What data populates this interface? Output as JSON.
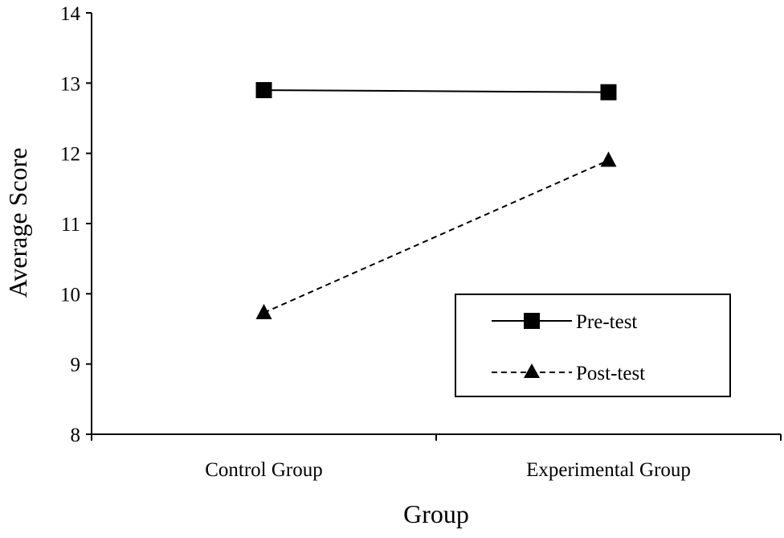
{
  "chart_data": {
    "type": "line",
    "title": "",
    "xlabel": "Group",
    "ylabel": "Average Score",
    "categories": [
      "Control Group",
      "Experimental Group"
    ],
    "ylim": [
      8,
      14
    ],
    "yticks": [
      "8",
      "9",
      "10",
      "11",
      "12",
      "13",
      "14"
    ],
    "grid": false,
    "legend_position": "bottom-right",
    "series": [
      {
        "name": "Pre-test",
        "values": [
          12.9,
          12.87
        ],
        "line_style": "solid",
        "marker": "square",
        "color": "#000000"
      },
      {
        "name": "Post-test",
        "values": [
          9.73,
          11.9
        ],
        "line_style": "dashed",
        "marker": "triangle",
        "color": "#000000"
      }
    ]
  }
}
